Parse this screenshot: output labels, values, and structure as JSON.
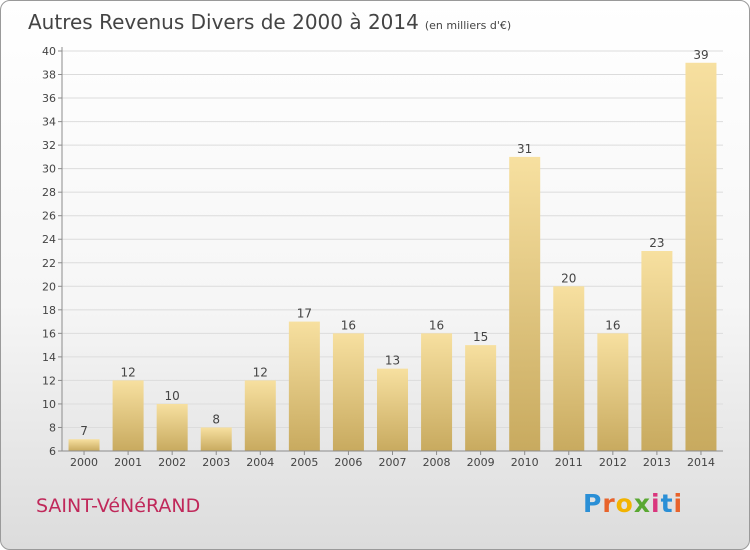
{
  "header": {
    "title": "Autres Revenus Divers de 2000 à 2014",
    "subtitle": "(en milliers d'€)"
  },
  "footer": {
    "commune": "SAINT-VéNéRAND",
    "logo_letters": [
      "P",
      "r",
      "o",
      "x",
      "i",
      "t",
      "i"
    ],
    "logo_colors": [
      "#2a8fd6",
      "#e8632b",
      "#f2b300",
      "#5aa832",
      "#d9367d",
      "#2a8fd6",
      "#e8632b"
    ]
  },
  "colors": {
    "bar_top": "#f7e0a0",
    "bar_bottom": "#c8aa5f",
    "grid": "#dcdcdc",
    "axis": "#8c8c8c",
    "title_text": "#444444",
    "commune_text": "#c0285a"
  },
  "chart_data": {
    "type": "bar",
    "title": "Autres Revenus Divers de 2000 à 2014",
    "subtitle": "(en milliers d'€)",
    "xlabel": "",
    "ylabel": "",
    "categories": [
      "2000",
      "2001",
      "2002",
      "2003",
      "2004",
      "2005",
      "2006",
      "2007",
      "2008",
      "2009",
      "2010",
      "2011",
      "2012",
      "2013",
      "2014"
    ],
    "values": [
      7,
      12,
      10,
      8,
      12,
      17,
      16,
      13,
      16,
      15,
      31,
      20,
      16,
      23,
      39
    ],
    "ylim": [
      6,
      40
    ],
    "yticks": [
      6,
      8,
      10,
      12,
      14,
      16,
      18,
      20,
      22,
      24,
      26,
      28,
      30,
      32,
      34,
      36,
      38,
      40
    ],
    "grid": true,
    "legend": "none"
  }
}
